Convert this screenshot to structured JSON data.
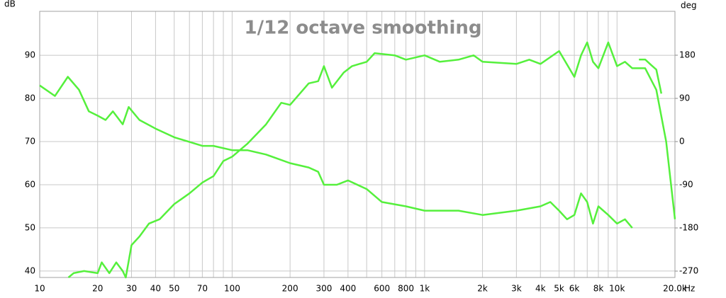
{
  "chart_data": {
    "type": "line",
    "title": "1/12 octave smoothing",
    "ylabel": "dB",
    "y2label": "deg",
    "xunit": "Hz",
    "xscale": "log",
    "grid": true,
    "xlim": [
      10,
      20000
    ],
    "ylim": [
      38.5,
      100.2
    ],
    "y2lim": [
      -283.3,
      271.5
    ],
    "xticks": [
      10,
      20,
      30,
      40,
      50,
      70,
      100,
      200,
      300,
      400,
      600,
      800,
      {
        "value": 1000,
        "label": "1k"
      },
      {
        "value": 2000,
        "label": "2k"
      },
      {
        "value": 3000,
        "label": "3k"
      },
      {
        "value": 4000,
        "label": "4k"
      },
      {
        "value": 5000,
        "label": "5k"
      },
      {
        "value": 6000,
        "label": "6k"
      },
      {
        "value": 8000,
        "label": "8k"
      },
      {
        "value": 10000,
        "label": "10k"
      },
      {
        "value": 20000,
        "label": "20.0k"
      }
    ],
    "xminor": [
      60,
      80,
      90,
      500,
      700,
      900,
      7000,
      9000
    ],
    "yticks": [
      40,
      50,
      60,
      70,
      80,
      90
    ],
    "y2ticks": [
      -270,
      -180,
      -90,
      0,
      90,
      180
    ],
    "series": [
      {
        "color": "#55f03c",
        "axis": "y",
        "x": [
          14.1,
          15,
          17,
          20,
          21,
          23,
          25,
          27,
          28,
          30,
          33,
          37,
          42,
          50,
          60,
          70,
          80,
          90,
          100,
          120,
          150,
          180,
          200,
          250,
          280,
          300,
          330,
          380,
          420,
          500,
          550,
          700,
          800,
          1000,
          1200,
          1500,
          1800,
          2000,
          3000,
          3500,
          4000,
          5000,
          6000,
          6500,
          7000,
          7500,
          8000,
          9000,
          10000,
          11000,
          12000,
          14000,
          16000,
          18000,
          20000
        ],
        "values": [
          38.5,
          39.5,
          40,
          39.5,
          42,
          39.5,
          42,
          40,
          38.5,
          46,
          48,
          51,
          52,
          55.5,
          58,
          60.5,
          62,
          65.5,
          66.5,
          69.5,
          74,
          79,
          78.5,
          83.5,
          84,
          87.5,
          82.5,
          86,
          87.5,
          88.5,
          90.5,
          90,
          89,
          90,
          88.5,
          89,
          90,
          88.5,
          88,
          89,
          88,
          91,
          85,
          90,
          93,
          88.5,
          87,
          93,
          87.5,
          88.5,
          87,
          87,
          82,
          70,
          52
        ]
      },
      {
        "color": "#55f03c",
        "axis": "y2",
        "x": [
          10,
          12,
          14,
          16,
          18,
          20,
          22,
          24,
          27,
          29,
          33,
          40,
          50,
          70,
          80,
          100,
          120,
          150,
          200,
          250,
          280,
          300,
          350,
          400,
          500,
          600,
          800,
          1000,
          1500,
          2000,
          3000,
          4000,
          4500,
          5000,
          5500,
          6000,
          6500,
          7000,
          7500,
          8000,
          9000,
          10000,
          11000,
          12000,
          12500,
          13000,
          14000,
          15000,
          16000,
          17000
        ],
        "values": [
          117,
          95,
          135,
          108,
          63,
          54,
          45,
          63,
          36,
          72,
          45,
          27,
          9,
          -9,
          -9,
          -18,
          -18,
          -27,
          -45,
          -54,
          -63,
          -90,
          -90,
          -81,
          -99,
          -126,
          -135,
          -144,
          -144,
          -153,
          -144,
          -135,
          -126,
          -144,
          -162,
          -153,
          -108,
          -126,
          -171,
          -135,
          -153,
          -171,
          -162,
          -180,
          null,
          171,
          171,
          160,
          150,
          100
        ]
      }
    ]
  }
}
